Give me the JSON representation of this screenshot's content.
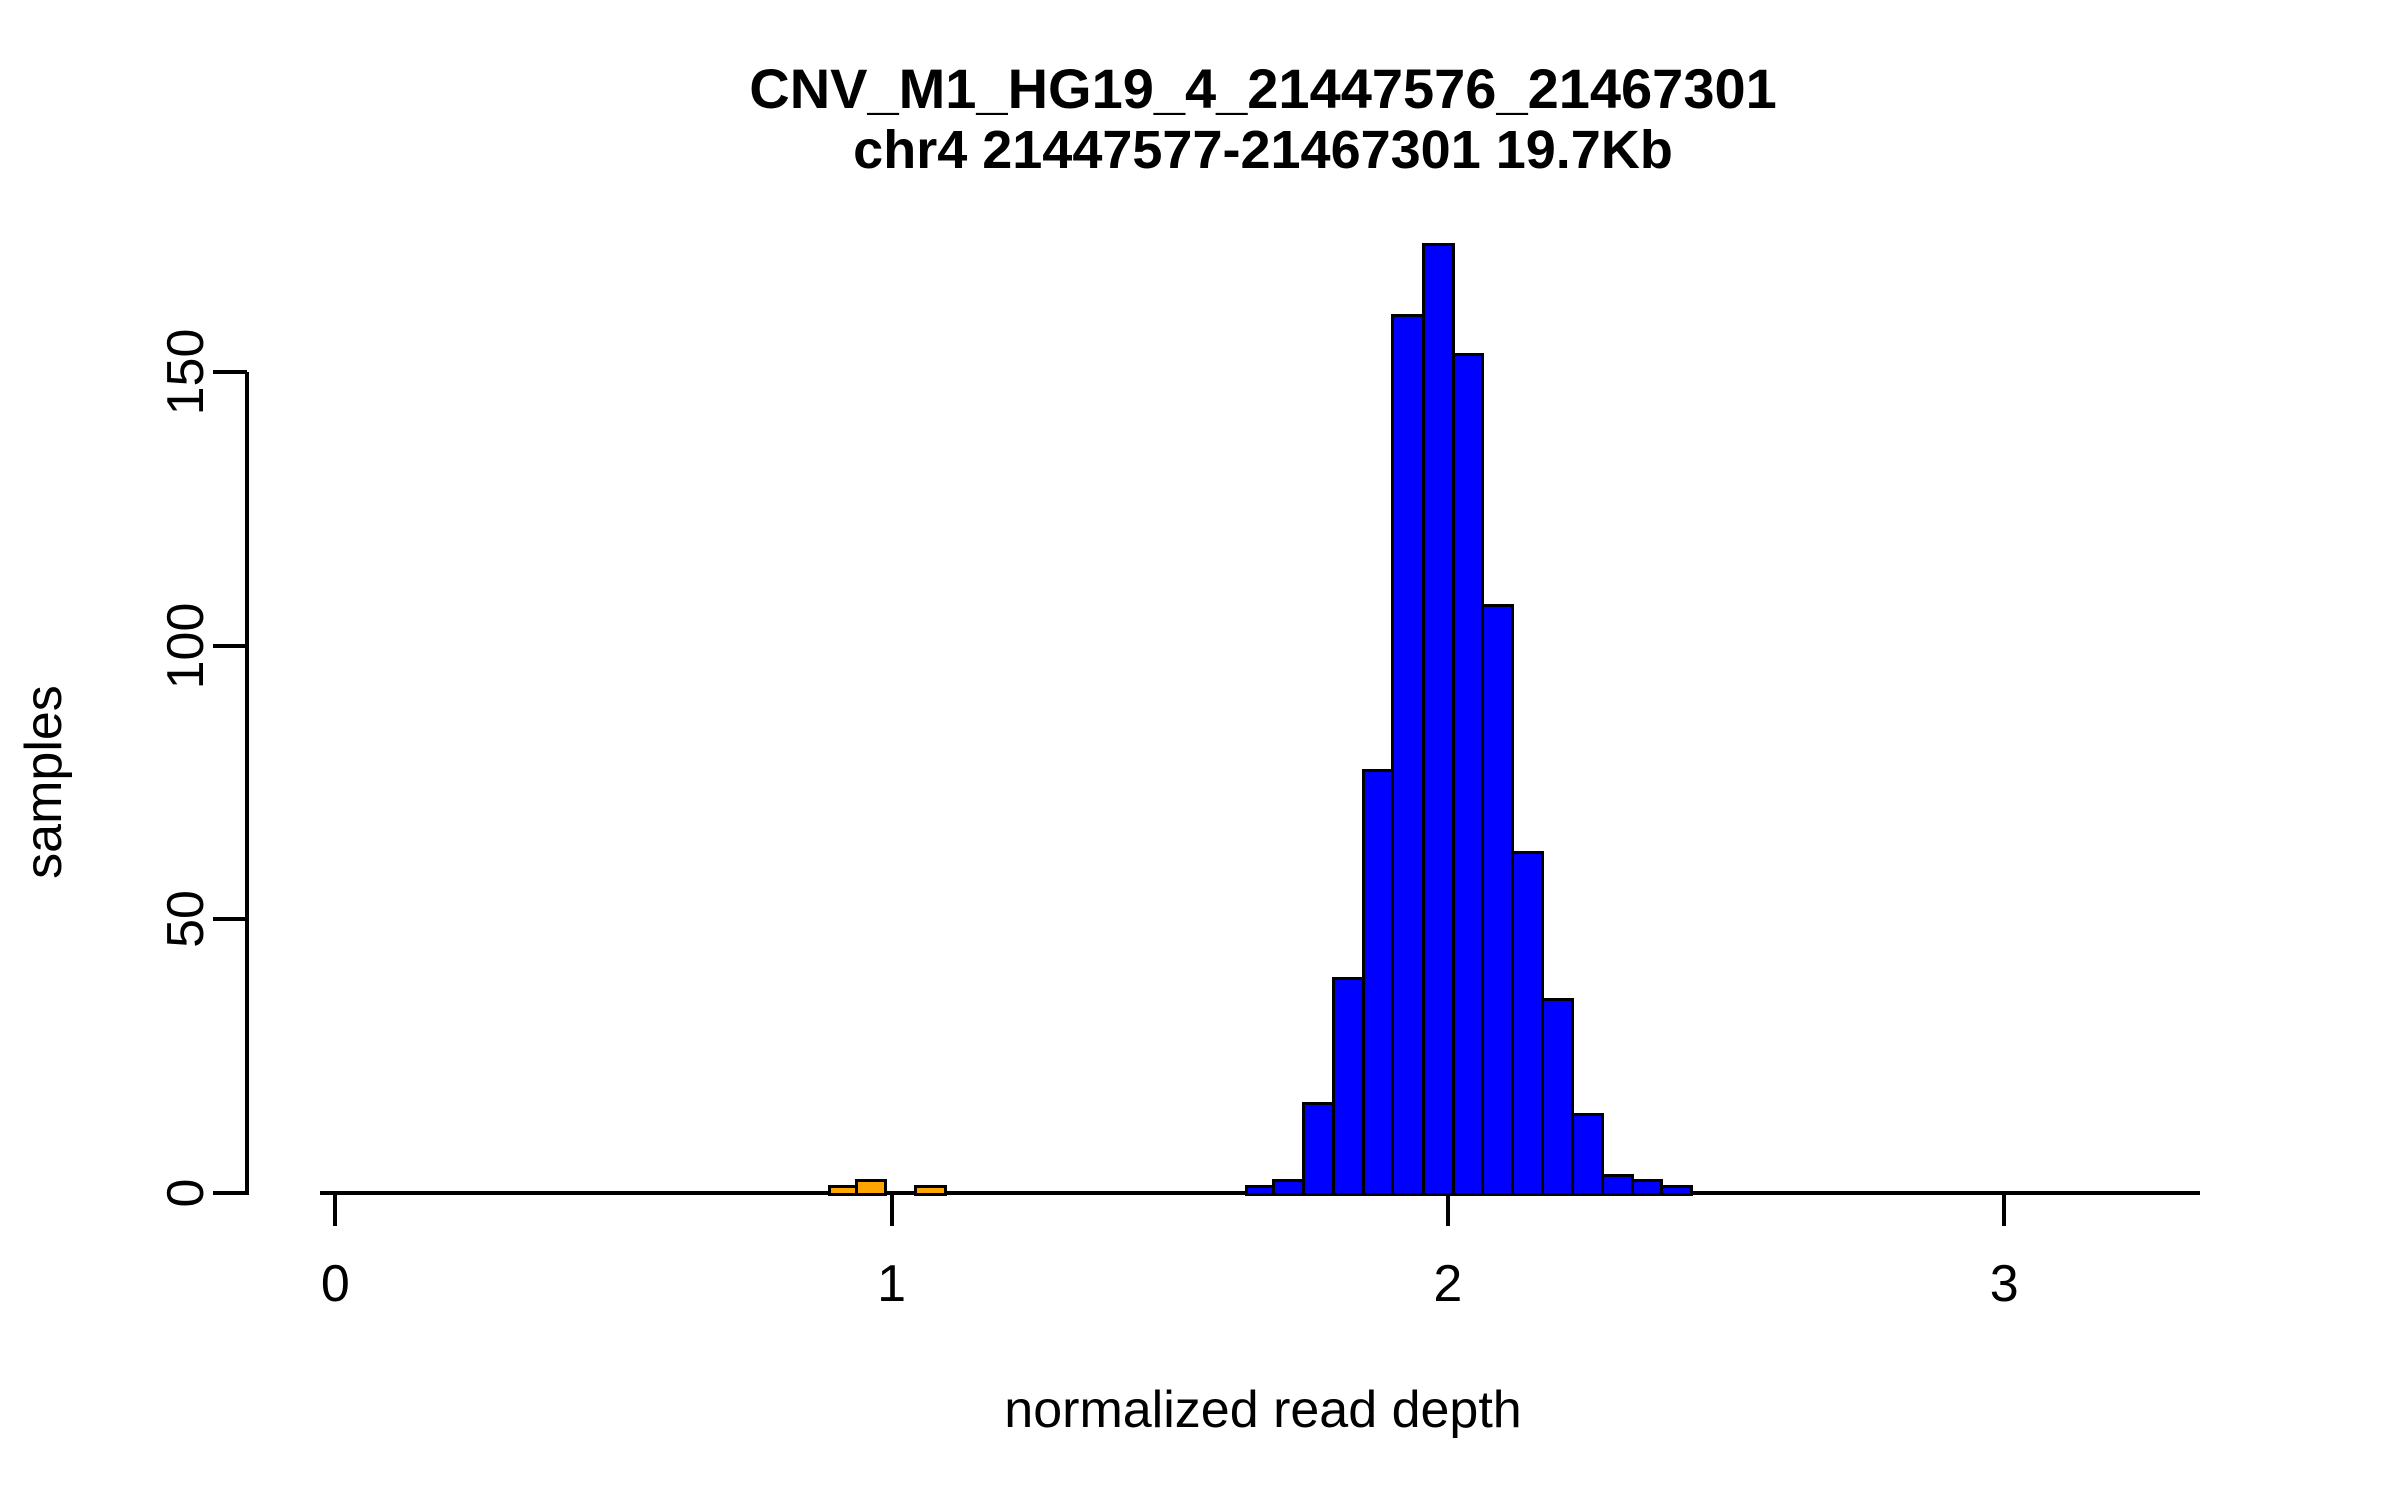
{
  "title": {
    "line1": "CNV_M1_HG19_4_21447576_21467301",
    "line2": "chr4 21447577-21467301 19.7Kb"
  },
  "axes": {
    "xlabel": "normalized read depth",
    "ylabel": "samples",
    "x_ticks": [
      {
        "value": 0,
        "label": "0"
      },
      {
        "value": 1,
        "label": "1"
      },
      {
        "value": 2,
        "label": "2"
      },
      {
        "value": 3,
        "label": "3"
      }
    ],
    "y_ticks": [
      {
        "value": 0,
        "label": "0"
      },
      {
        "value": 50,
        "label": "50"
      },
      {
        "value": 100,
        "label": "100"
      },
      {
        "value": 150,
        "label": "150"
      }
    ]
  },
  "colors": {
    "blue_bars": "#0000FF",
    "orange_bars": "#FFA500",
    "axis": "#000000",
    "background": "#FFFFFF"
  },
  "chart_data": {
    "type": "bar",
    "subtype": "histogram",
    "title": "CNV_M1_HG19_4_21447576_21467301",
    "subtitle": "chr4 21447577-21467301 19.7Kb",
    "xlabel": "normalized read depth",
    "ylabel": "samples",
    "xlim": [
      -0.03,
      3.35
    ],
    "ylim": [
      0,
      175
    ],
    "grid": false,
    "legend": false,
    "bin_width": 0.0536,
    "series": [
      {
        "name": "orange-bars-low-read-depth",
        "color": "#FFA500",
        "bins": [
          {
            "x0": 0.885,
            "x1": 0.939,
            "count": 1
          },
          {
            "x0": 0.939,
            "x1": 0.992,
            "count": 2
          },
          {
            "x0": 0.992,
            "x1": 1.046,
            "count": 0
          },
          {
            "x0": 1.046,
            "x1": 1.099,
            "count": 1
          }
        ]
      },
      {
        "name": "blue-bars-normal-read-depth",
        "color": "#0000FF",
        "bins": [
          {
            "x0": 1.636,
            "x1": 1.69,
            "count": 1
          },
          {
            "x0": 1.69,
            "x1": 1.743,
            "count": 2
          },
          {
            "x0": 1.743,
            "x1": 1.797,
            "count": 16
          },
          {
            "x0": 1.797,
            "x1": 1.851,
            "count": 39
          },
          {
            "x0": 1.851,
            "x1": 1.904,
            "count": 77
          },
          {
            "x0": 1.904,
            "x1": 1.958,
            "count": 160
          },
          {
            "x0": 1.958,
            "x1": 2.012,
            "count": 173
          },
          {
            "x0": 2.012,
            "x1": 2.065,
            "count": 153
          },
          {
            "x0": 2.065,
            "x1": 2.119,
            "count": 107
          },
          {
            "x0": 2.119,
            "x1": 2.173,
            "count": 62
          },
          {
            "x0": 2.173,
            "x1": 2.226,
            "count": 35
          },
          {
            "x0": 2.226,
            "x1": 2.28,
            "count": 14
          },
          {
            "x0": 2.28,
            "x1": 2.334,
            "count": 3
          },
          {
            "x0": 2.334,
            "x1": 2.387,
            "count": 2
          },
          {
            "x0": 2.387,
            "x1": 2.441,
            "count": 1
          }
        ]
      }
    ]
  }
}
